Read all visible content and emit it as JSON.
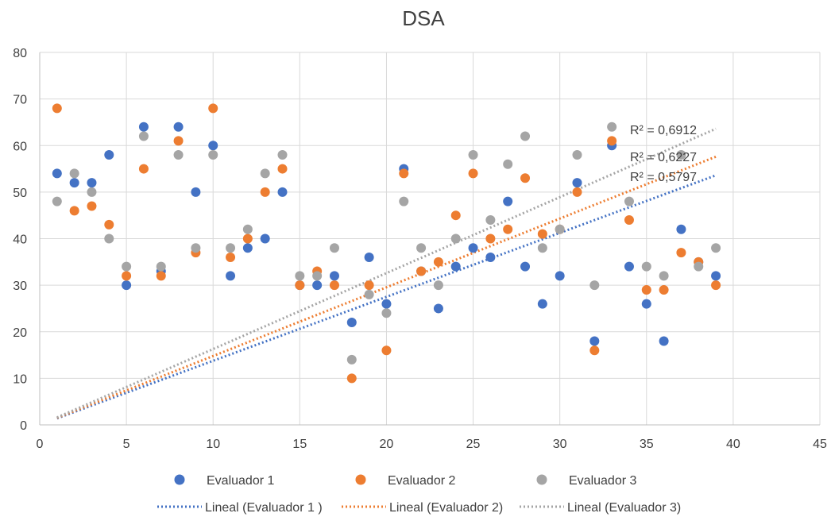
{
  "chart_data": {
    "type": "scatter",
    "title": "DSA",
    "xlabel": "",
    "ylabel": "",
    "xlim": [
      0,
      45
    ],
    "ylim": [
      0,
      80
    ],
    "x_ticks": [
      0,
      5,
      10,
      15,
      20,
      25,
      30,
      35,
      40,
      45
    ],
    "y_ticks": [
      0,
      10,
      20,
      30,
      40,
      50,
      60,
      70,
      80
    ],
    "grid": true,
    "legend_position": "bottom",
    "series": [
      {
        "name": "Evaluador 1",
        "color": "#4472c4",
        "x": [
          1,
          2,
          3,
          4,
          5,
          6,
          7,
          8,
          9,
          10,
          11,
          12,
          13,
          14,
          15,
          16,
          17,
          18,
          19,
          20,
          21,
          22,
          23,
          24,
          25,
          26,
          27,
          28,
          29,
          30,
          31,
          32,
          33,
          34,
          35,
          36,
          37,
          38,
          39
        ],
        "y": [
          54,
          52,
          52,
          58,
          30,
          64,
          33,
          64,
          50,
          60,
          32,
          38,
          40,
          50,
          30,
          30,
          32,
          22,
          36,
          26,
          55,
          33,
          25,
          34,
          38,
          36,
          48,
          34,
          26,
          32,
          52,
          18,
          60,
          34,
          26,
          18,
          42,
          35,
          32
        ]
      },
      {
        "name": "Evaluador 2",
        "color": "#ed7d31",
        "x": [
          1,
          2,
          3,
          4,
          5,
          6,
          7,
          8,
          9,
          10,
          11,
          12,
          13,
          14,
          15,
          16,
          17,
          18,
          19,
          20,
          21,
          22,
          23,
          24,
          25,
          26,
          27,
          28,
          29,
          30,
          31,
          32,
          33,
          34,
          35,
          36,
          37,
          38,
          39
        ],
        "y": [
          68,
          46,
          47,
          43,
          32,
          55,
          32,
          61,
          37,
          68,
          36,
          40,
          50,
          55,
          30,
          33,
          30,
          10,
          30,
          16,
          54,
          33,
          35,
          45,
          54,
          40,
          42,
          53,
          41,
          42,
          50,
          16,
          61,
          44,
          29,
          29,
          37,
          35,
          30
        ]
      },
      {
        "name": "Evaluador 3",
        "color": "#a5a5a5",
        "x": [
          1,
          2,
          3,
          4,
          5,
          6,
          7,
          8,
          9,
          10,
          11,
          12,
          13,
          14,
          15,
          16,
          17,
          18,
          19,
          20,
          21,
          22,
          23,
          24,
          25,
          26,
          27,
          28,
          29,
          30,
          31,
          32,
          33,
          34,
          35,
          36,
          37,
          38,
          39
        ],
        "y": [
          48,
          54,
          50,
          40,
          34,
          62,
          34,
          58,
          38,
          58,
          38,
          42,
          54,
          58,
          32,
          32,
          38,
          14,
          28,
          24,
          48,
          38,
          30,
          40,
          58,
          44,
          56,
          62,
          38,
          42,
          58,
          30,
          64,
          48,
          34,
          32,
          58,
          34,
          38
        ]
      }
    ],
    "trendlines": [
      {
        "name": "Lineal (Evaluador 1 )",
        "color": "#4472c4",
        "x": [
          1,
          39
        ],
        "y": [
          1.4,
          53.6
        ],
        "r2_label": "R² = 0,5797"
      },
      {
        "name": "Lineal (Evaluador 2)",
        "color": "#ed7d31",
        "x": [
          1,
          39
        ],
        "y": [
          1.5,
          57.6
        ],
        "r2_label": "R² = 0,6227"
      },
      {
        "name": "Lineal (Evaluador 3)",
        "color": "#a5a5a5",
        "x": [
          1,
          39
        ],
        "y": [
          1.6,
          63.6
        ],
        "r2_label": "R² = 0,6912"
      }
    ]
  }
}
